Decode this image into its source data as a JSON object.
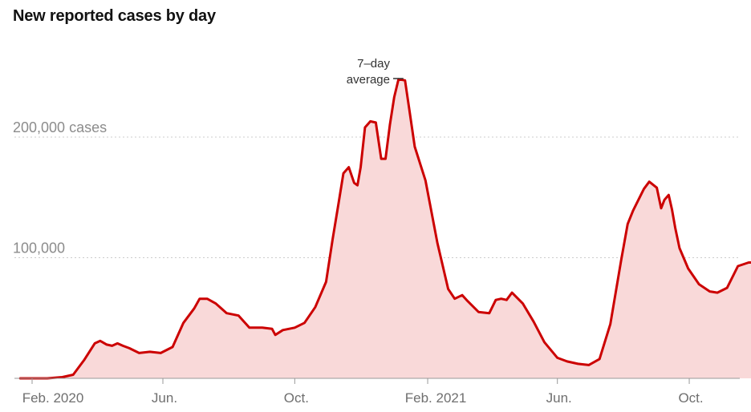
{
  "chart_data": {
    "type": "area",
    "title": "New reported cases by day",
    "xlabel": "",
    "ylabel": "",
    "x_tick_labels": [
      "Feb. 2020",
      "Jun.",
      "Oct.",
      "Feb. 2021",
      "Jun.",
      "Oct."
    ],
    "y_tick_labels": [
      "100,000",
      "200,000 cases"
    ],
    "y_ticks": [
      100000,
      200000
    ],
    "ylim": [
      0,
      260000
    ],
    "xlim": [
      "2020-01-21",
      "2021-11-30"
    ],
    "grid": "horizontal dotted",
    "annotation": {
      "lines": [
        "7–day",
        "average"
      ],
      "date": "2021-01-11",
      "value": 250000
    },
    "colors": {
      "line": "#cc0000",
      "fill": "#f9d9d9",
      "axis": "#999999",
      "grid": "#cccccc"
    },
    "series": [
      {
        "x": [
          "2020-01-21",
          "2020-02-15",
          "2020-02-29",
          "2020-03-10",
          "2020-03-20",
          "2020-03-30",
          "2020-04-04",
          "2020-04-10",
          "2020-04-15",
          "2020-04-20",
          "2020-04-25",
          "2020-05-01",
          "2020-05-10",
          "2020-05-20",
          "2020-05-30",
          "2020-06-10",
          "2020-06-20",
          "2020-06-30",
          "2020-07-05",
          "2020-07-12",
          "2020-07-20",
          "2020-07-30",
          "2020-08-10",
          "2020-08-20",
          "2020-09-01",
          "2020-09-10",
          "2020-09-13",
          "2020-09-20",
          "2020-10-01",
          "2020-10-10",
          "2020-10-20",
          "2020-10-30",
          "2020-11-05",
          "2020-11-10",
          "2020-11-15",
          "2020-11-20",
          "2020-11-25",
          "2020-11-28",
          "2020-12-01",
          "2020-12-05",
          "2020-12-10",
          "2020-12-15",
          "2020-12-20",
          "2020-12-24",
          "2020-12-28",
          "2021-01-01",
          "2021-01-05",
          "2021-01-11",
          "2021-01-15",
          "2021-01-20",
          "2021-01-30",
          "2021-02-10",
          "2021-02-20",
          "2021-02-26",
          "2021-03-05",
          "2021-03-10",
          "2021-03-20",
          "2021-03-30",
          "2021-04-05",
          "2021-04-10",
          "2021-04-15",
          "2021-04-20",
          "2021-04-30",
          "2021-05-10",
          "2021-05-20",
          "2021-06-01",
          "2021-06-10",
          "2021-06-20",
          "2021-06-30",
          "2021-07-10",
          "2021-07-20",
          "2021-07-30",
          "2021-08-05",
          "2021-08-10",
          "2021-08-15",
          "2021-08-20",
          "2021-08-25",
          "2021-09-01",
          "2021-09-05",
          "2021-09-08",
          "2021-09-12",
          "2021-09-15",
          "2021-09-18",
          "2021-09-22",
          "2021-09-30",
          "2021-10-10",
          "2021-10-20",
          "2021-10-27",
          "2021-11-05",
          "2021-11-15",
          "2021-11-25",
          "2021-11-30"
        ],
        "values": [
          0,
          0,
          1000,
          3000,
          15000,
          29000,
          31000,
          28000,
          27000,
          29000,
          27000,
          25000,
          21000,
          22000,
          21000,
          26000,
          46000,
          58000,
          66000,
          66000,
          62000,
          54000,
          52000,
          42000,
          42000,
          41000,
          36000,
          40000,
          42000,
          46000,
          59000,
          80000,
          115000,
          142000,
          170000,
          175000,
          162000,
          160000,
          175000,
          208000,
          213000,
          212000,
          182000,
          182000,
          210000,
          233000,
          248000,
          247000,
          223000,
          192000,
          164000,
          112000,
          74000,
          66000,
          69000,
          64000,
          55000,
          54000,
          65000,
          66000,
          65000,
          71000,
          62000,
          47000,
          30000,
          17000,
          14000,
          12000,
          11000,
          16000,
          45000,
          98000,
          128000,
          139000,
          148000,
          157000,
          163000,
          158000,
          141000,
          148000,
          152000,
          140000,
          125000,
          108000,
          91000,
          78000,
          72000,
          71000,
          75000,
          93000,
          96000,
          96000
        ]
      }
    ]
  }
}
